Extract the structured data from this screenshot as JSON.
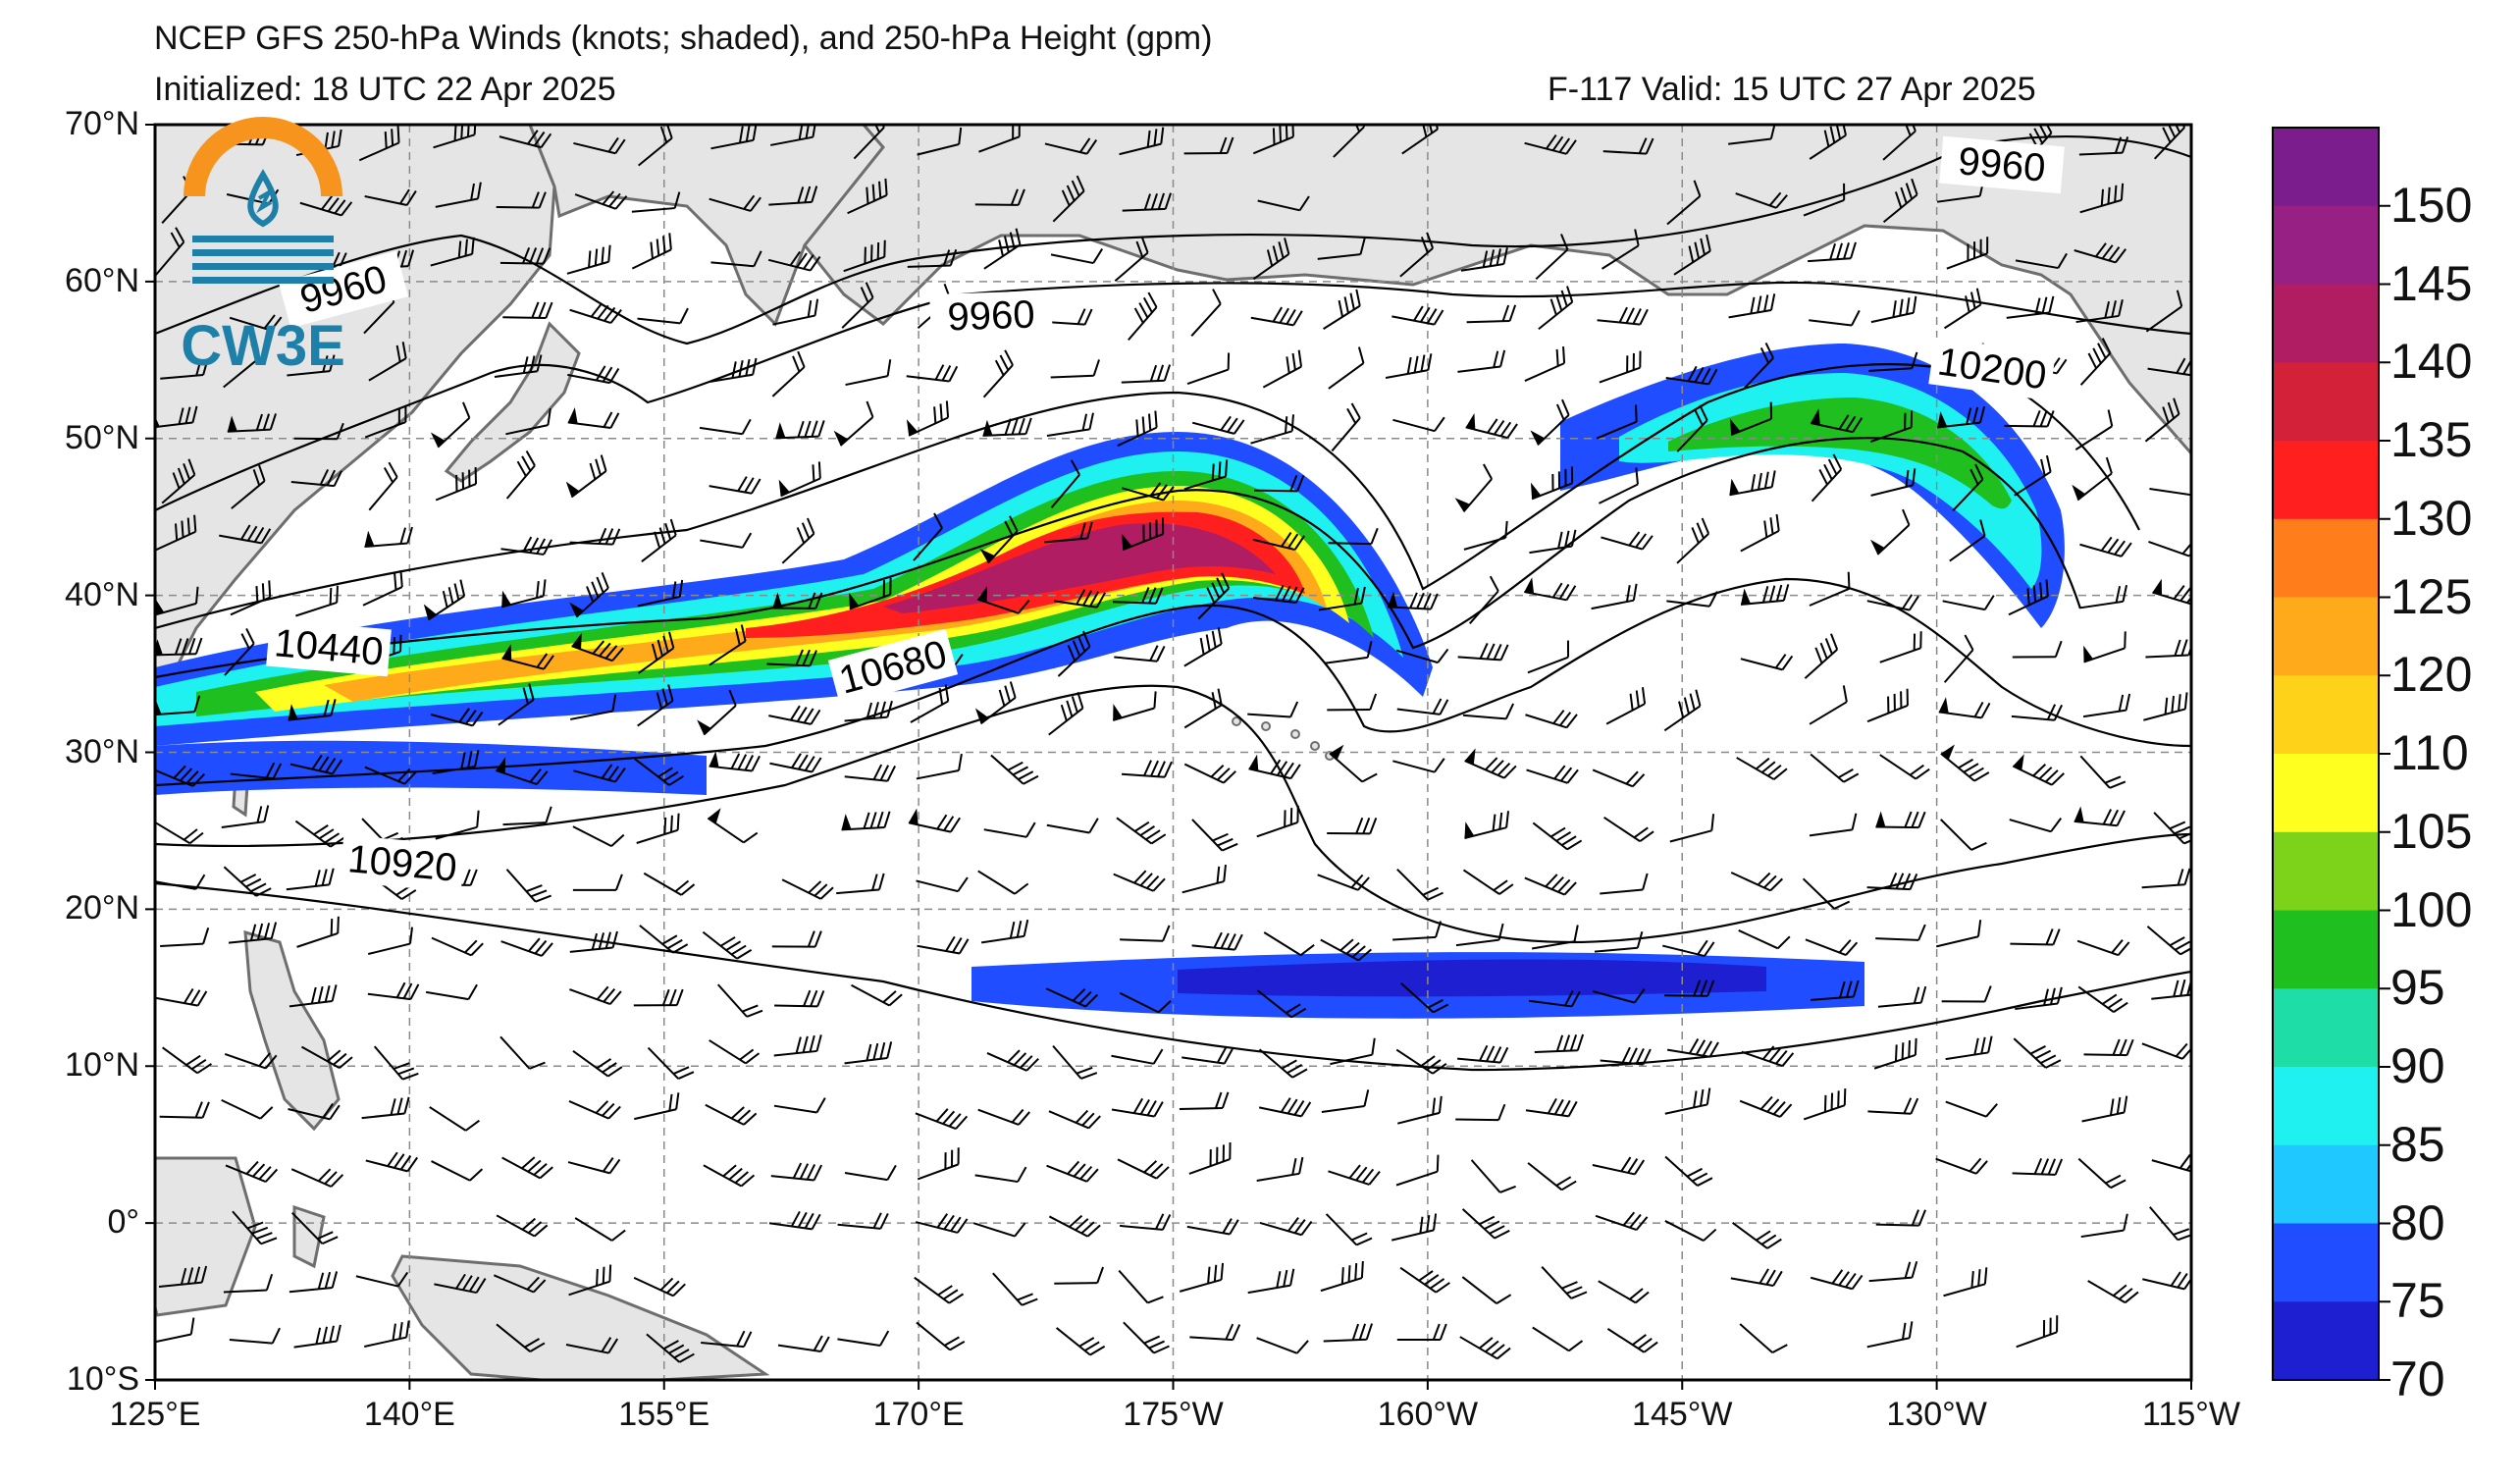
{
  "header": {
    "title": "NCEP GFS 250-hPa Winds (knots; shaded), and 250-hPa Height (gpm)",
    "initialized": "Initialized: 18 UTC 22 Apr 2025",
    "valid": "F-117  Valid: 15 UTC 27 Apr 2025"
  },
  "logo": {
    "text": "CW3E"
  },
  "map": {
    "lat_labels": [
      "70°N",
      "60°N",
      "50°N",
      "40°N",
      "30°N",
      "20°N",
      "10°N",
      "0°",
      "10°S"
    ],
    "lon_labels": [
      "125°E",
      "140°E",
      "155°E",
      "170°E",
      "175°W",
      "160°W",
      "145°W",
      "130°W",
      "115°W"
    ],
    "contour_labels": [
      "9960",
      "9960",
      "9960",
      "10200",
      "10440",
      "10680",
      "10920"
    ]
  },
  "colorbar": {
    "labels": [
      "150",
      "145",
      "140",
      "135",
      "130",
      "125",
      "120",
      "110",
      "105",
      "100",
      "95",
      "90",
      "85",
      "80",
      "75",
      "70"
    ],
    "colors": [
      "#7b1d8c",
      "#962083",
      "#b01d62",
      "#d4213a",
      "#ff1f1f",
      "#ff7d1a",
      "#ffaa1a",
      "#ffd21a",
      "#ffff1f",
      "#7dd31a",
      "#1fbf1f",
      "#1fdda6",
      "#1ff0f0",
      "#1fc8ff",
      "#1f4dff",
      "#1f1fd2"
    ]
  },
  "colors": {
    "land": "#e5e5e5",
    "coast": "#6e6e6e",
    "grid": "#8a8a8a",
    "contour": "#000000"
  }
}
